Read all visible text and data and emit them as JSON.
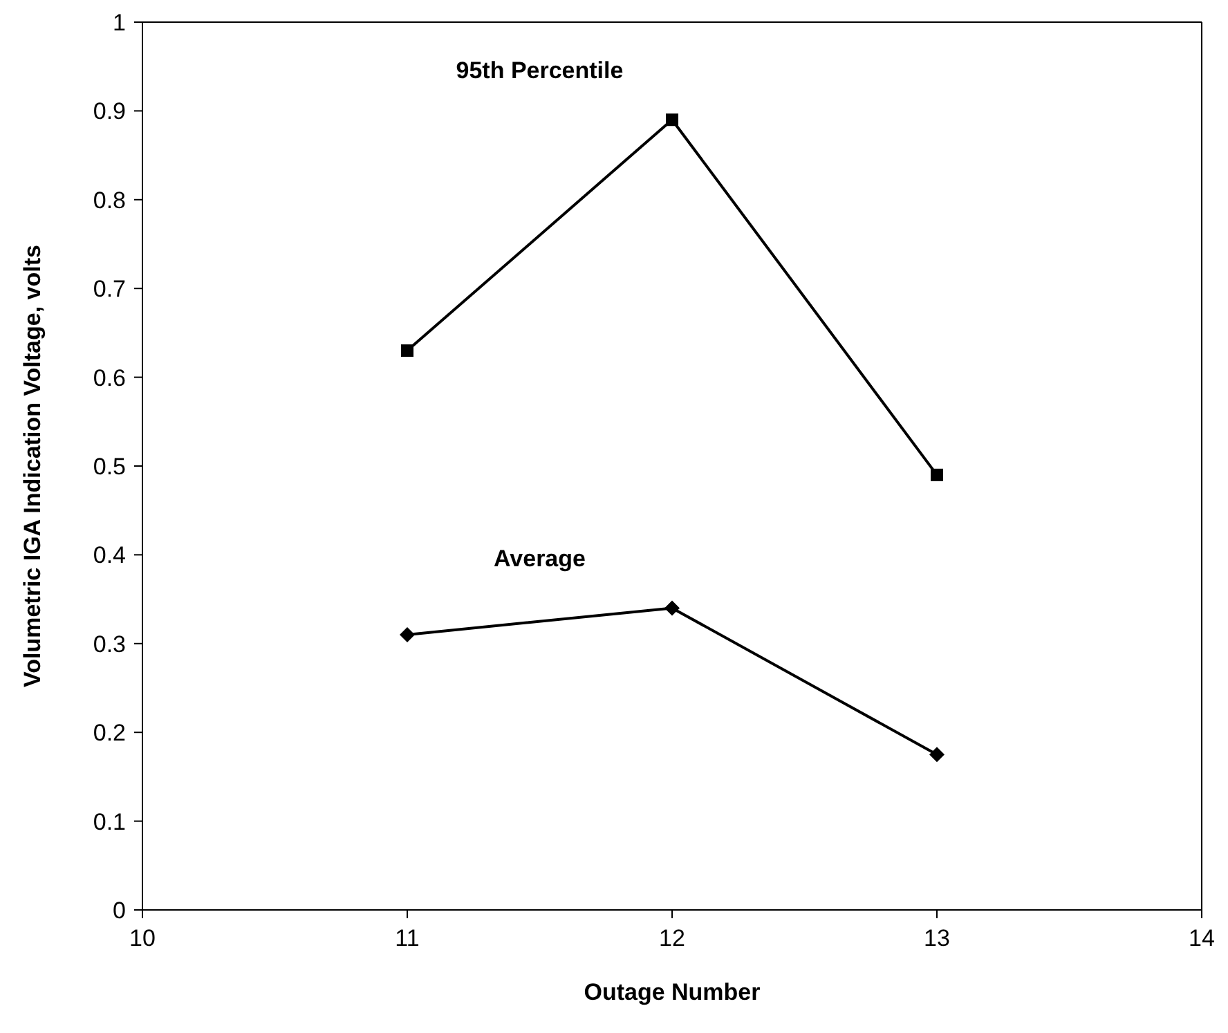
{
  "chart_data": {
    "type": "line",
    "xlabel": "Outage Number",
    "ylabel": "Volumetric IGA Indication Voltage, volts",
    "x": [
      11,
      12,
      13
    ],
    "series": [
      {
        "name": "95th Percentile",
        "color": "#000000",
        "marker": "square",
        "values": [
          0.63,
          0.89,
          0.49
        ]
      },
      {
        "name": "Average",
        "color": "#000000",
        "marker": "diamond",
        "values": [
          0.31,
          0.34,
          0.175
        ]
      }
    ],
    "xlim": [
      10,
      14
    ],
    "xticks": [
      10,
      11,
      12,
      13,
      14
    ],
    "ylim": [
      0,
      1
    ],
    "yticks": [
      0,
      0.1,
      0.2,
      0.3,
      0.4,
      0.5,
      0.6,
      0.7,
      0.8,
      0.9,
      1
    ],
    "grid": false,
    "legend": false
  }
}
